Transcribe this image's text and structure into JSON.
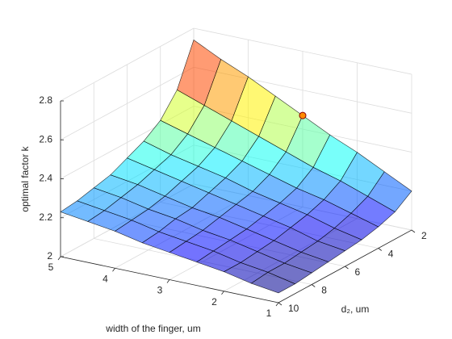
{
  "chart_data": {
    "type": "surface",
    "xlabel": "width of the finger, um",
    "ylabel": "d₂, um",
    "zlabel": "optimal factor k",
    "x": [
      1,
      1.5,
      2,
      2.5,
      3,
      3.5,
      4,
      4.5,
      5
    ],
    "y": [
      2,
      3,
      4,
      5,
      6,
      7,
      8,
      9,
      10
    ],
    "z": [
      [
        2.2,
        2.14,
        2.11,
        2.09,
        2.08,
        2.07,
        2.06,
        2.05,
        2.05
      ],
      [
        2.27,
        2.19,
        2.15,
        2.12,
        2.1,
        2.09,
        2.08,
        2.08,
        2.07
      ],
      [
        2.34,
        2.24,
        2.19,
        2.16,
        2.14,
        2.12,
        2.11,
        2.1,
        2.1
      ],
      [
        2.4,
        2.28,
        2.22,
        2.19,
        2.17,
        2.15,
        2.14,
        2.13,
        2.12
      ],
      [
        2.47,
        2.33,
        2.26,
        2.22,
        2.2,
        2.18,
        2.16,
        2.15,
        2.14
      ],
      [
        2.54,
        2.38,
        2.3,
        2.26,
        2.23,
        2.2,
        2.19,
        2.17,
        2.16
      ],
      [
        2.61,
        2.43,
        2.34,
        2.29,
        2.26,
        2.23,
        2.21,
        2.2,
        2.19
      ],
      [
        2.67,
        2.48,
        2.38,
        2.32,
        2.29,
        2.26,
        2.24,
        2.22,
        2.21
      ],
      [
        2.74,
        2.53,
        2.42,
        2.36,
        2.32,
        2.28,
        2.26,
        2.24,
        2.23
      ]
    ],
    "colormap": "jet",
    "alpha": 0.55,
    "xlim": [
      1,
      5
    ],
    "xticks": [
      1,
      2,
      3,
      4,
      5
    ],
    "ylim": [
      2,
      10
    ],
    "yticks": [
      2,
      4,
      6,
      8,
      10
    ],
    "zlim": [
      2,
      2.8
    ],
    "zticks": [
      2,
      2.2,
      2.4,
      2.6,
      2.8
    ],
    "grid": true,
    "marker": {
      "x": 3,
      "y": 2,
      "z": 2.47,
      "color": "#ff8c00"
    }
  }
}
